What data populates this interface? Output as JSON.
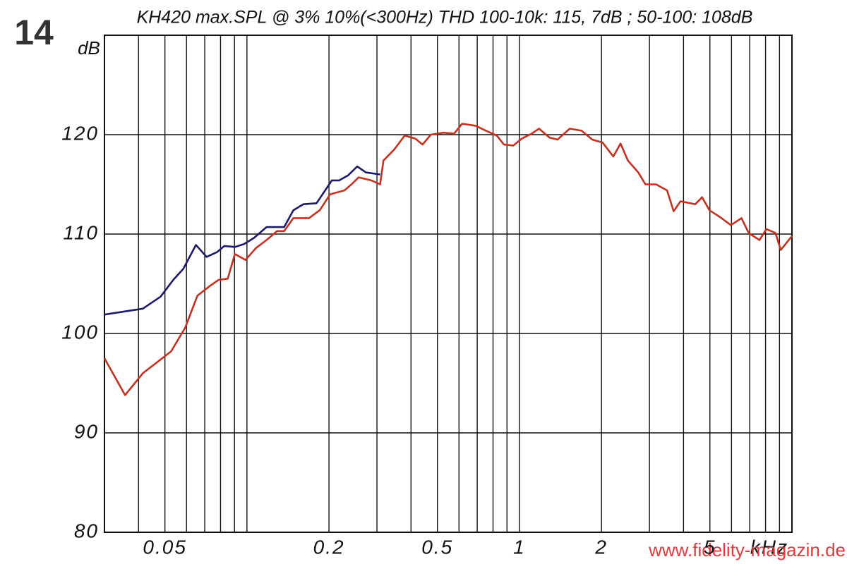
{
  "figure_label": "14",
  "watermark": "www.fidelity-magazin.de",
  "chart_data": {
    "type": "line",
    "title": "KH420 max.SPL @ 3% 10%(<300Hz) THD 100-10k: 115, 7dB ; 50-100: 108dB",
    "y_label": "dB",
    "x_label": "kHz",
    "x_log": true,
    "grid": true,
    "xlim": [
      0.03,
      10
    ],
    "ylim": [
      80,
      130
    ],
    "xticks": [
      0.05,
      0.2,
      0.5,
      1,
      2,
      5
    ],
    "xminor": [
      0.04,
      0.06,
      0.07,
      0.08,
      0.09,
      0.1,
      0.3,
      0.4,
      0.6,
      0.7,
      0.8,
      0.9,
      3,
      4,
      6,
      7,
      8,
      9
    ],
    "yticks": [
      80,
      90,
      100,
      110,
      120
    ],
    "series": [
      {
        "color": "#1c1a6b",
        "x": [
          0.03,
          0.0415,
          0.0482,
          0.0537,
          0.0584,
          0.065,
          0.0711,
          0.0778,
          0.0826,
          0.0903,
          0.0976,
          0.106,
          0.118,
          0.137,
          0.148,
          0.161,
          0.18,
          0.205,
          0.218,
          0.235,
          0.254,
          0.273,
          0.308
        ],
        "values": [
          101.9,
          102.5,
          103.7,
          105.4,
          106.5,
          108.9,
          107.7,
          108.2,
          108.8,
          108.7,
          109.0,
          109.6,
          110.7,
          110.7,
          112.4,
          113.0,
          113.1,
          115.4,
          115.4,
          115.9,
          116.8,
          116.2,
          116.0
        ]
      },
      {
        "color": "#c4321f",
        "x": [
          0.03,
          0.0357,
          0.0415,
          0.0527,
          0.0594,
          0.0658,
          0.0733,
          0.0787,
          0.085,
          0.0903,
          0.0988,
          0.108,
          0.118,
          0.129,
          0.137,
          0.148,
          0.169,
          0.185,
          0.202,
          0.228,
          0.242,
          0.257,
          0.286,
          0.308,
          0.317,
          0.347,
          0.379,
          0.415,
          0.441,
          0.473,
          0.527,
          0.576,
          0.616,
          0.689,
          0.754,
          0.826,
          0.877,
          0.949,
          1.02,
          1.11,
          1.18,
          1.29,
          1.38,
          1.53,
          1.69,
          1.85,
          2.02,
          2.21,
          2.35,
          2.5,
          2.73,
          2.9,
          3.17,
          3.48,
          3.68,
          3.9,
          4.42,
          4.68,
          4.98,
          5.45,
          5.97,
          6.53,
          6.94,
          7.6,
          8.06,
          8.7,
          9.1,
          10
        ],
        "values": [
          97.5,
          93.8,
          96.0,
          98.2,
          100.6,
          103.8,
          104.8,
          105.4,
          105.5,
          108.0,
          107.4,
          108.6,
          109.4,
          110.3,
          110.3,
          111.6,
          111.6,
          112.4,
          114.0,
          114.4,
          115.0,
          115.7,
          115.4,
          115.0,
          117.4,
          118.5,
          119.9,
          119.6,
          119.0,
          120.0,
          120.2,
          120.1,
          121.1,
          120.9,
          120.4,
          119.9,
          119.0,
          118.9,
          119.6,
          120.1,
          120.6,
          119.7,
          119.5,
          120.6,
          120.4,
          119.5,
          119.2,
          117.8,
          119.1,
          117.4,
          116.2,
          115.0,
          115.0,
          114.4,
          112.3,
          113.3,
          113.0,
          113.7,
          112.4,
          111.7,
          110.9,
          111.6,
          110.1,
          109.4,
          110.5,
          110.1,
          108.4,
          109.8
        ]
      }
    ]
  }
}
